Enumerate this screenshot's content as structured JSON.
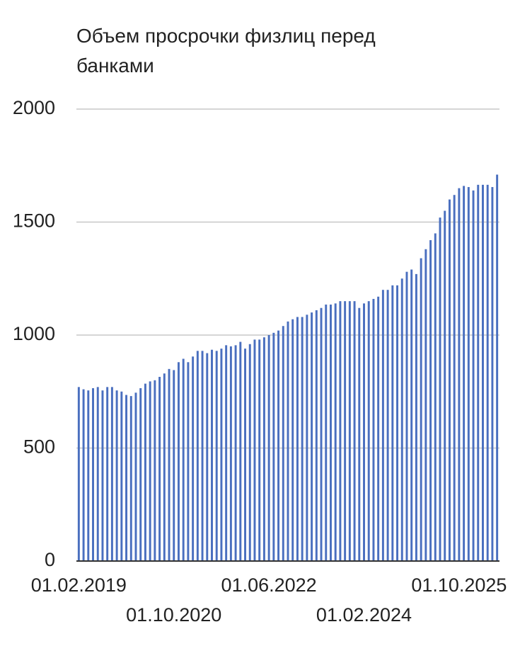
{
  "chart_data": {
    "type": "bar",
    "title": "Объем просрочки физлиц перед банками",
    "categories": [
      "01.02.2019",
      null,
      null,
      null,
      null,
      null,
      null,
      null,
      null,
      null,
      null,
      null,
      null,
      null,
      null,
      null,
      null,
      null,
      null,
      null,
      "01.10.2020",
      null,
      null,
      null,
      null,
      null,
      null,
      null,
      null,
      null,
      null,
      null,
      null,
      null,
      null,
      null,
      null,
      null,
      null,
      null,
      "01.06.2022",
      null,
      null,
      null,
      null,
      null,
      null,
      null,
      null,
      null,
      null,
      null,
      null,
      null,
      null,
      null,
      null,
      null,
      null,
      null,
      "01.02.2024",
      null,
      null,
      null,
      null,
      null,
      null,
      null,
      null,
      null,
      null,
      null,
      null,
      null,
      null,
      null,
      null,
      null,
      null,
      null,
      "01.10.2025",
      null,
      null,
      null,
      null,
      null,
      null,
      null,
      null
    ],
    "values": [
      770,
      760,
      755,
      765,
      770,
      755,
      770,
      770,
      755,
      750,
      735,
      730,
      745,
      765,
      785,
      795,
      800,
      815,
      830,
      850,
      845,
      880,
      895,
      880,
      905,
      930,
      930,
      920,
      935,
      930,
      940,
      955,
      950,
      955,
      970,
      940,
      960,
      980,
      980,
      990,
      1000,
      1010,
      1020,
      1040,
      1060,
      1070,
      1080,
      1080,
      1090,
      1100,
      1110,
      1120,
      1135,
      1135,
      1140,
      1150,
      1150,
      1150,
      1150,
      1120,
      1140,
      1150,
      1160,
      1170,
      1200,
      1200,
      1220,
      1220,
      1250,
      1280,
      1290,
      1270,
      1340,
      1380,
      1420,
      1450,
      1520,
      1550,
      1600,
      1620,
      1650,
      1660,
      1655,
      1640,
      1665,
      1665,
      1665,
      1655,
      1710
    ],
    "color": "#4a6fbf",
    "ylim": [
      0,
      2000
    ],
    "yticks": [
      0,
      500,
      1000,
      1500,
      2000
    ],
    "grid": true
  }
}
